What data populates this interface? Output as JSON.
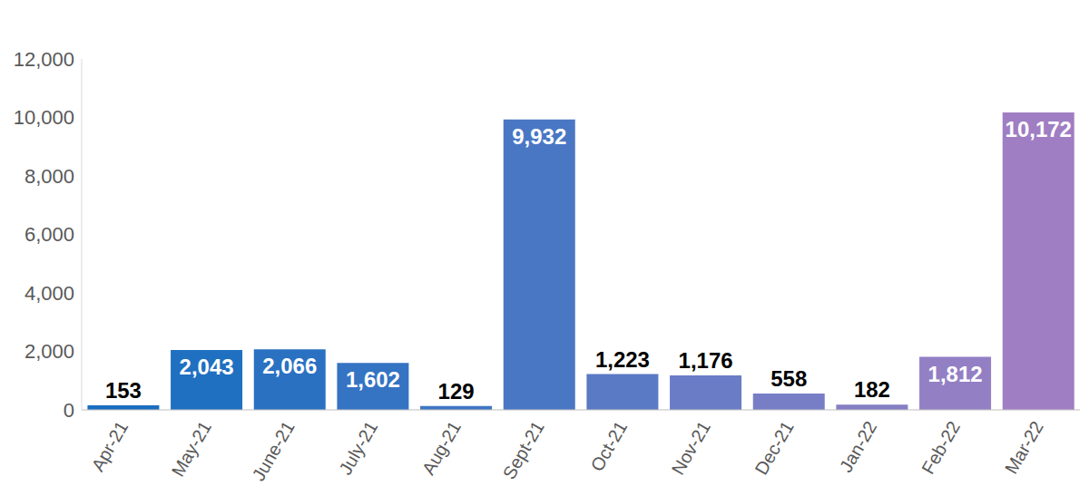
{
  "chart_data": {
    "type": "bar",
    "categories": [
      "Apr-21",
      "May-21",
      "June-21",
      "July-21",
      "Aug-21",
      "Sept-21",
      "Oct-21",
      "Nov-21",
      "Dec-21",
      "Jan-22",
      "Feb-22",
      "Mar-22"
    ],
    "values": [
      153,
      2043,
      2066,
      1602,
      129,
      9932,
      1223,
      1176,
      558,
      182,
      1812,
      10172
    ],
    "value_labels": [
      "153",
      "2,043",
      "2,066",
      "1,602",
      "129",
      "9,932",
      "1,223",
      "1,176",
      "558",
      "182",
      "1,812",
      "10,172"
    ],
    "colors": [
      "#1a6ec0",
      "#1f70c1",
      "#2a71c2",
      "#3573c3",
      "#3f75c4",
      "#4a77c4",
      "#5a7ac5",
      "#6a7cc5",
      "#787ec5",
      "#857fc4",
      "#937fc4",
      "#a07ec3"
    ],
    "ylim": [
      0,
      12000
    ],
    "yticks": [
      0,
      {
        "value": 2000,
        "label": "2,000"
      },
      {
        "value": 4000,
        "label": "4,000"
      },
      {
        "value": 6000,
        "label": "6,000"
      },
      {
        "value": 8000,
        "label": "8,000"
      },
      {
        "value": 10000,
        "label": "10,000"
      },
      {
        "value": 12000,
        "label": "12,000"
      }
    ],
    "grid": false,
    "data_labels": true
  }
}
